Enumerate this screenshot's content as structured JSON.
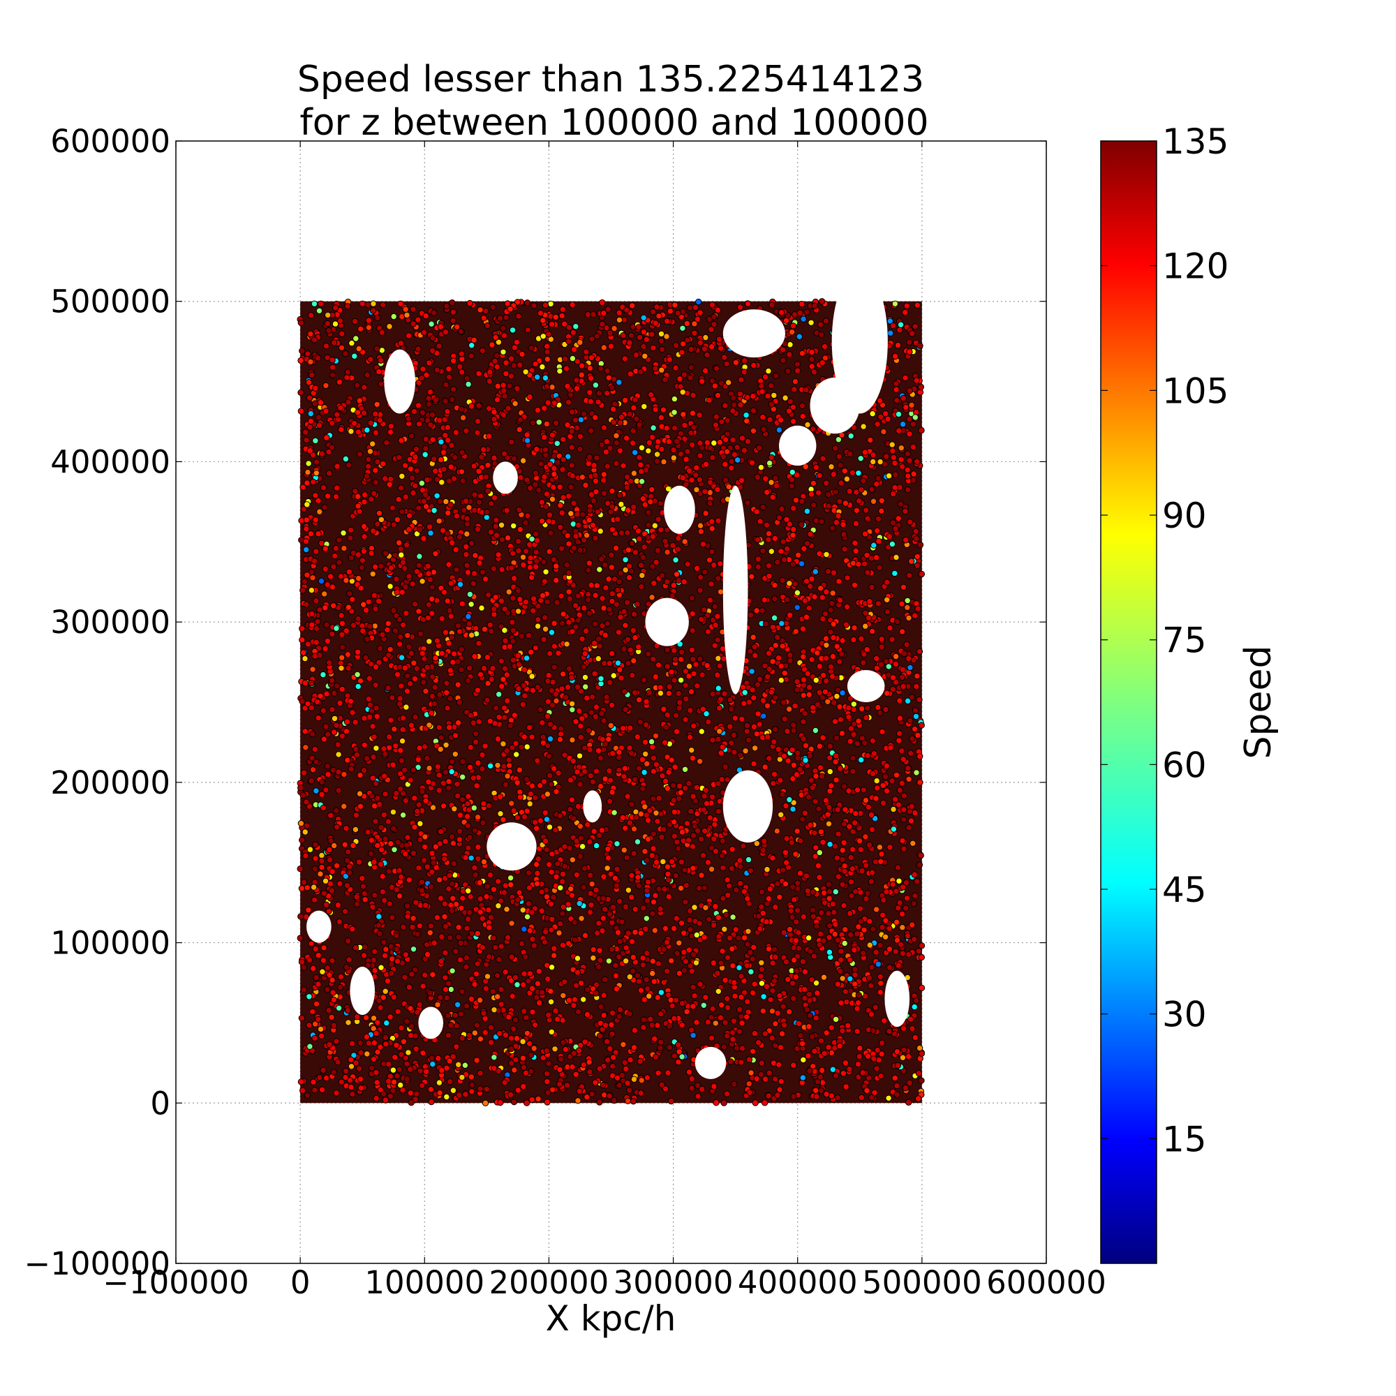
{
  "chart_data": {
    "type": "scatter",
    "title": [
      "Speed lesser than 135.225414123",
      "for z between 100000 and 100000"
    ],
    "xlabel": "X kpc/h",
    "ylabel": "",
    "xlim": [
      -100000,
      600000
    ],
    "ylim": [
      -100000,
      600000
    ],
    "x_ticks": [
      "−100000",
      "0",
      "100000",
      "200000",
      "300000",
      "400000",
      "500000",
      "600000"
    ],
    "y_ticks": [
      "−100000",
      "0",
      "100000",
      "200000",
      "300000",
      "400000",
      "500000",
      "600000"
    ],
    "grid": true,
    "points_extent": {
      "x": [
        0,
        500000
      ],
      "y": [
        0,
        500000
      ]
    },
    "dominant_speed_range": [
      115,
      135
    ],
    "colorbar": {
      "label": "Speed",
      "range": [
        0,
        135
      ],
      "ticks": [
        "15",
        "30",
        "45",
        "60",
        "75",
        "90",
        "105",
        "120",
        "135"
      ],
      "colormap": [
        "#00007f",
        "#0000ff",
        "#007fff",
        "#00ffff",
        "#7fff7f",
        "#ffff00",
        "#ff7f00",
        "#ff0000",
        "#7f0000"
      ]
    }
  }
}
